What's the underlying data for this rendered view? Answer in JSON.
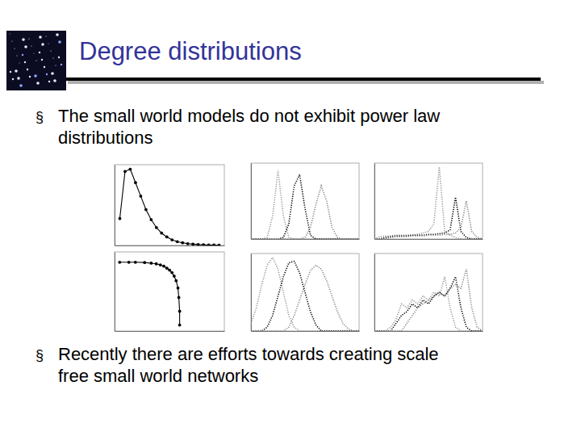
{
  "slide": {
    "title": "Degree distributions",
    "bullet": "§",
    "bullets": [
      [
        "The small world models do not exhibit power law",
        "distributions"
      ],
      [
        "Recently there are efforts towards creating scale",
        "free small world networks"
      ]
    ]
  },
  "chart_data": [
    {
      "type": "line",
      "tick_labels": false,
      "xlim": [
        0,
        21
      ],
      "ylim": [
        0,
        360
      ],
      "x": [
        1,
        2,
        3,
        4,
        5,
        6,
        7,
        8,
        9,
        10,
        11,
        12,
        13,
        14,
        15,
        16,
        17,
        18,
        19,
        20
      ],
      "series": [
        {
          "color": "#000000",
          "marker": "circle",
          "line_style": "solid",
          "values": [
            120,
            330,
            340,
            280,
            220,
            160,
            115,
            80,
            55,
            38,
            25,
            17,
            12,
            8,
            6,
            4,
            3,
            2,
            2,
            1
          ]
        }
      ]
    },
    {
      "type": "line",
      "tick_labels": false,
      "xlim": [
        0,
        100
      ],
      "ylim": [
        0,
        1
      ],
      "x": [
        0,
        5,
        10,
        15,
        20,
        25,
        30,
        35,
        40,
        45,
        50,
        55,
        60,
        65,
        70,
        75,
        80,
        85,
        90,
        95,
        100
      ],
      "series": [
        {
          "color": "#999999",
          "line_style": "dotted",
          "values": [
            0,
            0,
            0,
            0.02,
            0.3,
            0.9,
            0.3,
            0.02,
            0,
            0,
            0,
            0,
            0,
            0,
            0,
            0,
            0,
            0,
            0,
            0,
            0
          ]
        },
        {
          "color": "#000000",
          "line_style": "dotted",
          "values": [
            0,
            0,
            0,
            0,
            0,
            0,
            0.02,
            0.2,
            0.7,
            0.85,
            0.4,
            0.05,
            0,
            0,
            0,
            0,
            0,
            0,
            0,
            0,
            0
          ]
        },
        {
          "color": "#888888",
          "line_style": "dotted",
          "values": [
            0,
            0,
            0,
            0,
            0,
            0,
            0,
            0,
            0,
            0,
            0.02,
            0.15,
            0.45,
            0.7,
            0.5,
            0.15,
            0.02,
            0,
            0,
            0,
            0
          ]
        }
      ]
    },
    {
      "type": "line",
      "tick_labels": false,
      "xlim": [
        0,
        100
      ],
      "ylim": [
        0,
        1
      ],
      "x": [
        0,
        5,
        10,
        15,
        20,
        25,
        30,
        35,
        40,
        45,
        50,
        55,
        60,
        65,
        70,
        75,
        80,
        85,
        90,
        95,
        100
      ],
      "series": [
        {
          "color": "#999999",
          "line_style": "dotted",
          "values": [
            0,
            0.03,
            0.04,
            0.04,
            0.05,
            0.05,
            0.05,
            0.05,
            0.06,
            0.08,
            0.1,
            0.2,
            0.95,
            0.1,
            0.05,
            0.02,
            0,
            0,
            0,
            0,
            0
          ]
        },
        {
          "color": "#000000",
          "line_style": "dotted",
          "values": [
            0,
            0,
            0.02,
            0.03,
            0.04,
            0.04,
            0.04,
            0.05,
            0.05,
            0.05,
            0.06,
            0.06,
            0.07,
            0.08,
            0.12,
            0.55,
            0.1,
            0.02,
            0,
            0,
            0
          ]
        },
        {
          "color": "#888888",
          "line_style": "dotted",
          "values": [
            0,
            0,
            0,
            0.02,
            0.03,
            0.03,
            0.03,
            0.04,
            0.04,
            0.04,
            0.05,
            0.05,
            0.05,
            0.06,
            0.06,
            0.08,
            0.15,
            0.5,
            0.1,
            0.02,
            0
          ]
        }
      ]
    },
    {
      "type": "line",
      "tick_labels": false,
      "log": true,
      "xlim": [
        0.8,
        100
      ],
      "ylim": [
        0.0001,
        1
      ],
      "x": [
        1,
        1.5,
        2,
        3,
        4,
        5,
        6,
        7,
        8,
        9,
        10,
        11,
        12,
        13,
        13.5,
        14,
        14
      ],
      "series": [
        {
          "color": "#000000",
          "marker": "circle",
          "line_style": "solid",
          "values": [
            0.3,
            0.3,
            0.3,
            0.29,
            0.27,
            0.25,
            0.22,
            0.19,
            0.15,
            0.12,
            0.09,
            0.06,
            0.035,
            0.015,
            0.005,
            0.001,
            0.0002
          ]
        }
      ]
    },
    {
      "type": "line",
      "tick_labels": false,
      "xlim": [
        0,
        100
      ],
      "ylim": [
        0,
        1
      ],
      "x": [
        0,
        5,
        10,
        15,
        20,
        25,
        30,
        35,
        40,
        45,
        50,
        55,
        60,
        65,
        70,
        75,
        80,
        85,
        90,
        95,
        100
      ],
      "series": [
        {
          "color": "#999999",
          "line_style": "dotted",
          "values": [
            0.1,
            0.3,
            0.6,
            0.85,
            0.95,
            0.8,
            0.5,
            0.2,
            0.05,
            0,
            0,
            0,
            0,
            0,
            0,
            0,
            0,
            0,
            0,
            0,
            0
          ]
        },
        {
          "color": "#000000",
          "line_style": "dotted",
          "values": [
            0,
            0,
            0,
            0.05,
            0.2,
            0.45,
            0.7,
            0.88,
            0.9,
            0.75,
            0.5,
            0.25,
            0.08,
            0,
            0,
            0,
            0,
            0,
            0,
            0,
            0
          ]
        },
        {
          "color": "#888888",
          "line_style": "dotted",
          "values": [
            0,
            0,
            0,
            0,
            0,
            0,
            0,
            0.05,
            0.2,
            0.4,
            0.6,
            0.78,
            0.85,
            0.8,
            0.65,
            0.45,
            0.25,
            0.1,
            0.03,
            0,
            0
          ]
        }
      ]
    },
    {
      "type": "line",
      "tick_labels": false,
      "xlim": [
        0,
        100
      ],
      "ylim": [
        0,
        1
      ],
      "x": [
        0,
        5,
        10,
        15,
        20,
        25,
        30,
        35,
        40,
        45,
        50,
        55,
        60,
        65,
        70,
        75,
        80,
        85,
        90,
        95,
        100
      ],
      "series": [
        {
          "color": "#999999",
          "line_style": "dotted",
          "values": [
            0,
            0,
            0,
            0.05,
            0.15,
            0.35,
            0.3,
            0.4,
            0.35,
            0.45,
            0.4,
            0.5,
            0.45,
            0.7,
            0.3,
            0.05,
            0,
            0,
            0,
            0,
            0
          ]
        },
        {
          "color": "#000000",
          "line_style": "dotted",
          "values": [
            0,
            0,
            0,
            0,
            0.1,
            0.2,
            0.25,
            0.35,
            0.3,
            0.4,
            0.35,
            0.45,
            0.5,
            0.45,
            0.55,
            0.7,
            0.3,
            0.05,
            0,
            0,
            0
          ]
        },
        {
          "color": "#888888",
          "line_style": "dotted",
          "values": [
            0,
            0,
            0,
            0,
            0,
            0,
            0.1,
            0.2,
            0.3,
            0.35,
            0.4,
            0.45,
            0.5,
            0.45,
            0.55,
            0.6,
            0.55,
            0.8,
            0.3,
            0.05,
            0
          ]
        }
      ]
    }
  ]
}
